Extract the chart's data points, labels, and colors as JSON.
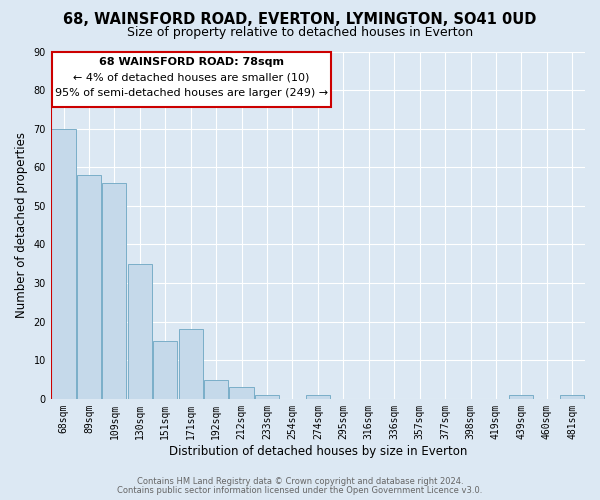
{
  "title": "68, WAINSFORD ROAD, EVERTON, LYMINGTON, SO41 0UD",
  "subtitle": "Size of property relative to detached houses in Everton",
  "xlabel": "Distribution of detached houses by size in Everton",
  "ylabel": "Number of detached properties",
  "bar_values": [
    70,
    58,
    56,
    35,
    15,
    18,
    5,
    3,
    1,
    0,
    1,
    0,
    0,
    0,
    0,
    0,
    0,
    0,
    1,
    0,
    1
  ],
  "bar_labels": [
    "68sqm",
    "89sqm",
    "109sqm",
    "130sqm",
    "151sqm",
    "171sqm",
    "192sqm",
    "212sqm",
    "233sqm",
    "254sqm",
    "274sqm",
    "295sqm",
    "316sqm",
    "336sqm",
    "357sqm",
    "377sqm",
    "398sqm",
    "419sqm",
    "439sqm",
    "460sqm",
    "481sqm"
  ],
  "bar_color": "#c5d9ea",
  "bar_edge_color": "#7aaec8",
  "highlight_line_color": "#cc0000",
  "ylim": [
    0,
    90
  ],
  "yticks": [
    0,
    10,
    20,
    30,
    40,
    50,
    60,
    70,
    80,
    90
  ],
  "annotation_title": "68 WAINSFORD ROAD: 78sqm",
  "annotation_line1": "← 4% of detached houses are smaller (10)",
  "annotation_line2": "95% of semi-detached houses are larger (249) →",
  "annotation_box_color": "#ffffff",
  "annotation_box_edge": "#cc0000",
  "footer_line1": "Contains HM Land Registry data © Crown copyright and database right 2024.",
  "footer_line2": "Contains public sector information licensed under the Open Government Licence v3.0.",
  "background_color": "#dce8f3",
  "plot_bg_color": "#dce8f3",
  "grid_color": "#ffffff",
  "title_fontsize": 10.5,
  "subtitle_fontsize": 9,
  "axis_label_fontsize": 8.5,
  "tick_fontsize": 7,
  "footer_fontsize": 6,
  "annotation_fontsize": 8
}
